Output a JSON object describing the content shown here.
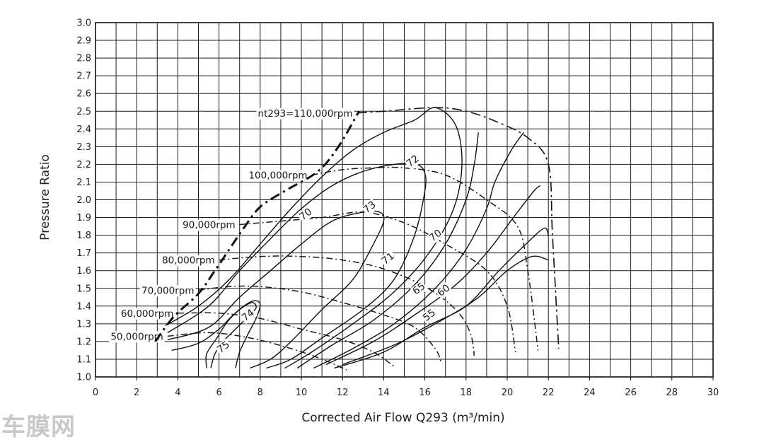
{
  "chart_data": {
    "type": "line",
    "title": "",
    "xlabel": "Corrected Air Flow Q293 (m³/min)",
    "ylabel": "Pressure Ratio",
    "xlim": [
      0,
      30
    ],
    "ylim": [
      1.0,
      3.0
    ],
    "x_ticks": [
      0,
      2,
      4,
      6,
      8,
      10,
      12,
      14,
      16,
      18,
      20,
      22,
      24,
      26,
      28,
      30
    ],
    "y_ticks": [
      1.0,
      1.1,
      1.2,
      1.3,
      1.4,
      1.5,
      1.6,
      1.7,
      1.8,
      1.9,
      2.0,
      2.1,
      2.2,
      2.3,
      2.4,
      2.5,
      2.6,
      2.7,
      2.8,
      2.9,
      3.0
    ],
    "grid": true,
    "speed_lines": [
      {
        "label": "50,000rpm",
        "points": [
          [
            3.5,
            1.23
          ],
          [
            5.5,
            1.25
          ],
          [
            7.5,
            1.22
          ],
          [
            9.5,
            1.16
          ],
          [
            11,
            1.1
          ],
          [
            12.2,
            1.04
          ]
        ]
      },
      {
        "label": "60,000rpm",
        "points": [
          [
            4,
            1.36
          ],
          [
            6,
            1.36
          ],
          [
            8,
            1.33
          ],
          [
            10,
            1.27
          ],
          [
            12,
            1.21
          ],
          [
            13.5,
            1.14
          ],
          [
            14.5,
            1.06
          ]
        ]
      },
      {
        "label": "70,000rpm",
        "points": [
          [
            5,
            1.49
          ],
          [
            6.5,
            1.51
          ],
          [
            8,
            1.51
          ],
          [
            10,
            1.48
          ],
          [
            12,
            1.42
          ],
          [
            14,
            1.35
          ],
          [
            15.5,
            1.28
          ],
          [
            16.5,
            1.16
          ],
          [
            16.8,
            1.08
          ]
        ]
      },
      {
        "label": "80,000rpm",
        "points": [
          [
            6,
            1.66
          ],
          [
            8,
            1.68
          ],
          [
            10,
            1.68
          ],
          [
            12,
            1.66
          ],
          [
            14,
            1.61
          ],
          [
            16,
            1.51
          ],
          [
            17.5,
            1.38
          ],
          [
            18.2,
            1.25
          ],
          [
            18.4,
            1.12
          ]
        ]
      },
      {
        "label": "90,000rpm",
        "points": [
          [
            7,
            1.86
          ],
          [
            9,
            1.88
          ],
          [
            11,
            1.9
          ],
          [
            13,
            1.93
          ],
          [
            15,
            1.87
          ],
          [
            17,
            1.75
          ],
          [
            19,
            1.6
          ],
          [
            20,
            1.4
          ],
          [
            20.4,
            1.14
          ]
        ]
      },
      {
        "label": "100,000rpm",
        "points": [
          [
            10.5,
            2.14
          ],
          [
            12,
            2.17
          ],
          [
            13.5,
            2.18
          ],
          [
            15,
            2.18
          ],
          [
            17,
            2.14
          ],
          [
            19,
            2.0
          ],
          [
            20.5,
            1.85
          ],
          [
            21,
            1.6
          ],
          [
            21.5,
            1.15
          ]
        ]
      },
      {
        "label": "nt293=110,000rpm",
        "points": [
          [
            12.7,
            2.49
          ],
          [
            14,
            2.5
          ],
          [
            16.5,
            2.52
          ],
          [
            18,
            2.5
          ],
          [
            19.5,
            2.44
          ],
          [
            21,
            2.35
          ],
          [
            22,
            2.2
          ],
          [
            22.2,
            1.8
          ],
          [
            22.5,
            1.16
          ]
        ]
      }
    ],
    "surge_line": [
      [
        2.9,
        1.2
      ],
      [
        3.8,
        1.34
      ],
      [
        5,
        1.47
      ],
      [
        5.8,
        1.6
      ],
      [
        6.5,
        1.72
      ],
      [
        7.2,
        1.84
      ],
      [
        8,
        1.96
      ],
      [
        9.2,
        2.05
      ],
      [
        10.8,
        2.16
      ],
      [
        11.8,
        2.3
      ],
      [
        12.8,
        2.5
      ]
    ],
    "efficiency_islands": [
      {
        "label": "75",
        "points": [
          [
            5.6,
            1.05
          ],
          [
            5.8,
            1.13
          ],
          [
            6.2,
            1.2
          ],
          [
            6.8,
            1.27
          ],
          [
            7.4,
            1.34
          ],
          [
            7.8,
            1.39
          ],
          [
            7.6,
            1.42
          ],
          [
            7.0,
            1.38
          ],
          [
            6.4,
            1.31
          ],
          [
            5.9,
            1.22
          ],
          [
            5.4,
            1.13
          ],
          [
            5.4,
            1.05
          ]
        ]
      },
      {
        "label": "74",
        "points": [
          [
            3.7,
            1.15
          ],
          [
            5,
            1.19
          ],
          [
            6,
            1.27
          ],
          [
            6.6,
            1.34
          ],
          [
            7.2,
            1.4
          ],
          [
            7.7,
            1.43
          ],
          [
            8,
            1.41
          ],
          [
            7.8,
            1.33
          ],
          [
            7.4,
            1.24
          ],
          [
            7,
            1.14
          ],
          [
            6.8,
            1.05
          ]
        ]
      },
      {
        "label": "73",
        "points": [
          [
            3.5,
            1.21
          ],
          [
            5.5,
            1.28
          ],
          [
            7,
            1.45
          ],
          [
            8.5,
            1.6
          ],
          [
            10,
            1.75
          ],
          [
            11.5,
            1.88
          ],
          [
            13,
            1.93
          ],
          [
            13.8,
            1.93
          ],
          [
            14,
            1.88
          ],
          [
            13.5,
            1.75
          ],
          [
            12.5,
            1.55
          ],
          [
            11,
            1.38
          ],
          [
            9.5,
            1.2
          ],
          [
            8.5,
            1.1
          ],
          [
            7.5,
            1.05
          ]
        ]
      },
      {
        "label": "72",
        "points": [
          [
            3.5,
            1.25
          ],
          [
            5.5,
            1.4
          ],
          [
            7,
            1.6
          ],
          [
            8.5,
            1.78
          ],
          [
            10,
            1.95
          ],
          [
            11.5,
            2.08
          ],
          [
            13,
            2.16
          ],
          [
            14.5,
            2.2
          ],
          [
            15.6,
            2.2
          ],
          [
            16,
            2.15
          ],
          [
            16,
            2.05
          ],
          [
            15.5,
            1.8
          ],
          [
            14.5,
            1.55
          ],
          [
            13,
            1.38
          ],
          [
            11,
            1.22
          ],
          [
            9.5,
            1.1
          ],
          [
            8.3,
            1.05
          ]
        ]
      },
      {
        "label": "71",
        "points": [
          [
            3.4,
            1.29
          ],
          [
            5,
            1.4
          ],
          [
            6.5,
            1.55
          ],
          [
            8,
            1.75
          ],
          [
            9.5,
            1.95
          ],
          [
            11,
            2.13
          ],
          [
            12.5,
            2.28
          ],
          [
            14,
            2.38
          ],
          [
            15.5,
            2.45
          ],
          [
            16.5,
            2.52
          ],
          [
            17.5,
            2.42
          ],
          [
            17.8,
            2.2
          ],
          [
            17.4,
            1.95
          ],
          [
            16.2,
            1.7
          ],
          [
            14.5,
            1.48
          ],
          [
            12.5,
            1.3
          ],
          [
            10.5,
            1.14
          ],
          [
            9.2,
            1.05
          ]
        ]
      },
      {
        "label": "70",
        "points": [
          [
            9.8,
            1.05
          ],
          [
            11.5,
            1.18
          ],
          [
            13.5,
            1.32
          ],
          [
            15.5,
            1.52
          ],
          [
            17,
            1.75
          ],
          [
            18,
            2.0
          ],
          [
            18.4,
            2.2
          ],
          [
            18.6,
            2.38
          ]
        ]
      },
      {
        "label": "65",
        "points": [
          [
            10.6,
            1.05
          ],
          [
            12.5,
            1.16
          ],
          [
            14.5,
            1.3
          ],
          [
            16.5,
            1.5
          ],
          [
            18,
            1.72
          ],
          [
            19,
            1.95
          ],
          [
            19.4,
            2.1
          ],
          [
            20.2,
            2.28
          ],
          [
            20.8,
            2.38
          ]
        ]
      },
      {
        "label": "60",
        "points": [
          [
            11.2,
            1.07
          ],
          [
            13.5,
            1.2
          ],
          [
            15.5,
            1.35
          ],
          [
            17.5,
            1.52
          ],
          [
            19,
            1.7
          ],
          [
            20.3,
            1.9
          ],
          [
            21.3,
            2.05
          ],
          [
            21.6,
            2.08
          ]
        ]
      },
      {
        "label": "55",
        "points": [
          [
            11.6,
            1.05
          ],
          [
            14,
            1.14
          ],
          [
            16,
            1.28
          ],
          [
            18,
            1.4
          ],
          [
            19.6,
            1.6
          ],
          [
            21,
            1.76
          ],
          [
            21.8,
            1.84
          ],
          [
            22,
            1.8
          ]
        ]
      },
      {
        "label": "",
        "points": [
          [
            12,
            1.07
          ],
          [
            14.5,
            1.18
          ],
          [
            16.5,
            1.3
          ],
          [
            18.5,
            1.44
          ],
          [
            20,
            1.6
          ],
          [
            21.2,
            1.68
          ],
          [
            22,
            1.66
          ]
        ]
      }
    ],
    "island_label_positions": [
      {
        "label": "75",
        "x": 6.2,
        "y": 1.17
      },
      {
        "label": "74",
        "x": 7.4,
        "y": 1.35
      },
      {
        "label": "73",
        "x": 13.3,
        "y": 1.96
      },
      {
        "label": "72",
        "x": 15.4,
        "y": 2.22
      },
      {
        "label": "71",
        "x": 14.2,
        "y": 1.67
      },
      {
        "label": "70",
        "x": 10.2,
        "y": 1.92
      },
      {
        "label": "70",
        "x": 16.5,
        "y": 1.8
      },
      {
        "label": "65",
        "x": 15.7,
        "y": 1.5
      },
      {
        "label": "60",
        "x": 16.9,
        "y": 1.49
      },
      {
        "label": "55",
        "x": 16.2,
        "y": 1.35
      }
    ]
  },
  "watermark": "车膜网",
  "colors": {
    "line": "#111111",
    "grid": "#1c1c1c",
    "background": "#ffffff",
    "speedline_tint_green": "#2e8b2e",
    "speedline_tint_red": "#b04020",
    "watermark": "#c8c8c8"
  }
}
